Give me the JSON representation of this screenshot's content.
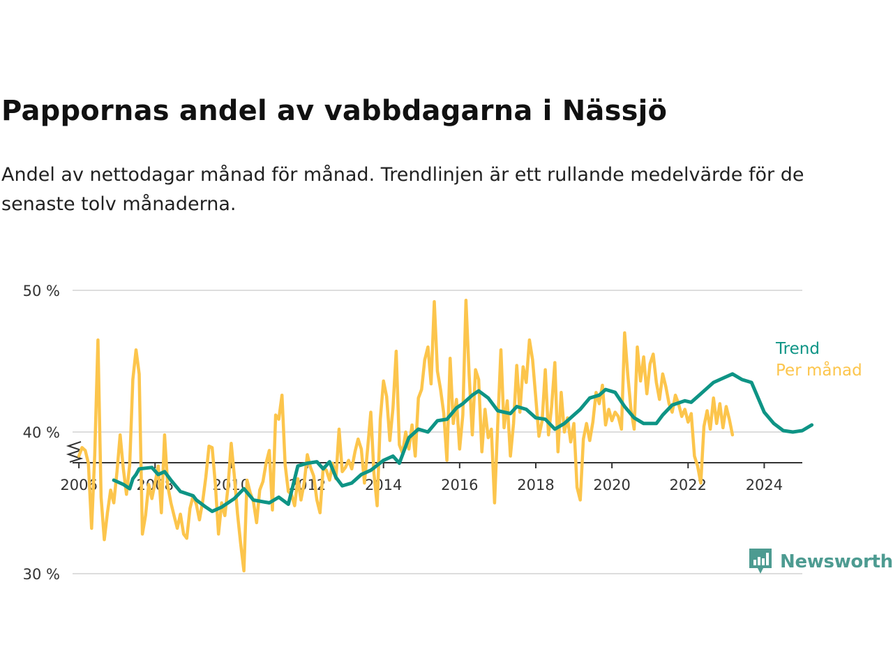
{
  "title": "Pappornas andel av vabbdagarna i Nässjö",
  "subtitle": "Andel av nettodagar månad för månad. Trendlinjen är ett rullande medelvärde för de senaste tolv månaderna.",
  "brand": {
    "name": "Newsworthy",
    "icon": "newsworthy-logo-icon",
    "color": "#4d9b91"
  },
  "colors": {
    "trend": "#0e9485",
    "monthly": "#fcc54c",
    "grid": "#dddddd",
    "axis": "#333333"
  },
  "chart_data": {
    "type": "line",
    "y_ticks": [
      {
        "value": 30,
        "label": "30 %"
      },
      {
        "value": 40,
        "label": "40 %"
      },
      {
        "value": 50,
        "label": "50 %"
      }
    ],
    "x_ticks": [
      "2006",
      "2008",
      "2010",
      "2012",
      "2014",
      "2016",
      "2018",
      "2020",
      "2022",
      "2024"
    ],
    "xlim": [
      "2005-11",
      "2025-01"
    ],
    "ylim": [
      25,
      50
    ],
    "axis_break": true,
    "grid": true,
    "legend": "right-end-labels",
    "series": [
      {
        "name": "Trend",
        "color": "#0e9485",
        "points": [
          [
            "2006-12",
            36.6
          ],
          [
            "2007-03",
            36.3
          ],
          [
            "2007-05",
            36.0
          ],
          [
            "2007-06",
            36.7
          ],
          [
            "2007-07",
            37.0
          ],
          [
            "2007-08",
            37.4
          ],
          [
            "2007-12",
            37.5
          ],
          [
            "2008-02",
            37.0
          ],
          [
            "2008-04",
            37.2
          ],
          [
            "2008-06",
            36.6
          ],
          [
            "2008-09",
            35.8
          ],
          [
            "2009-01",
            35.5
          ],
          [
            "2009-02",
            35.2
          ],
          [
            "2009-05",
            34.7
          ],
          [
            "2009-07",
            34.4
          ],
          [
            "2009-10",
            34.7
          ],
          [
            "2010-02",
            35.3
          ],
          [
            "2010-05",
            36.0
          ],
          [
            "2010-08",
            35.2
          ],
          [
            "2011-01",
            35.0
          ],
          [
            "2011-04",
            35.4
          ],
          [
            "2011-07",
            34.9
          ],
          [
            "2011-10",
            37.6
          ],
          [
            "2012-01",
            37.8
          ],
          [
            "2012-04",
            37.9
          ],
          [
            "2012-06",
            37.4
          ],
          [
            "2012-08",
            37.9
          ],
          [
            "2012-10",
            36.8
          ],
          [
            "2012-12",
            36.2
          ],
          [
            "2013-03",
            36.4
          ],
          [
            "2013-06",
            37.0
          ],
          [
            "2013-09",
            37.3
          ],
          [
            "2014-01",
            38.0
          ],
          [
            "2014-04",
            38.3
          ],
          [
            "2014-06",
            37.8
          ],
          [
            "2014-09",
            39.6
          ],
          [
            "2014-12",
            40.2
          ],
          [
            "2015-03",
            40.0
          ],
          [
            "2015-06",
            40.8
          ],
          [
            "2015-09",
            40.9
          ],
          [
            "2015-12",
            41.7
          ],
          [
            "2016-02",
            42.0
          ],
          [
            "2016-05",
            42.6
          ],
          [
            "2016-07",
            42.9
          ],
          [
            "2016-10",
            42.4
          ],
          [
            "2017-01",
            41.5
          ],
          [
            "2017-05",
            41.3
          ],
          [
            "2017-07",
            41.8
          ],
          [
            "2017-10",
            41.6
          ],
          [
            "2018-01",
            41.0
          ],
          [
            "2018-04",
            40.9
          ],
          [
            "2018-07",
            40.2
          ],
          [
            "2018-10",
            40.6
          ],
          [
            "2019-03",
            41.6
          ],
          [
            "2019-06",
            42.4
          ],
          [
            "2019-09",
            42.6
          ],
          [
            "2019-11",
            43.0
          ],
          [
            "2020-02",
            42.8
          ],
          [
            "2020-05",
            41.8
          ],
          [
            "2020-08",
            41.0
          ],
          [
            "2020-11",
            40.6
          ],
          [
            "2021-03",
            40.6
          ],
          [
            "2021-05",
            41.2
          ],
          [
            "2021-08",
            41.9
          ],
          [
            "2021-12",
            42.2
          ],
          [
            "2022-02",
            42.1
          ],
          [
            "2022-05",
            42.7
          ],
          [
            "2022-09",
            43.5
          ],
          [
            "2022-12",
            43.8
          ],
          [
            "2023-03",
            44.1
          ],
          [
            "2023-06",
            43.7
          ],
          [
            "2023-09",
            43.5
          ],
          [
            "2024-01",
            41.4
          ],
          [
            "2024-04",
            40.6
          ],
          [
            "2024-07",
            40.1
          ],
          [
            "2024-10",
            40.0
          ],
          [
            "2025-01",
            40.1
          ],
          [
            "2025-04",
            40.5
          ]
        ]
      },
      {
        "name": "Per månad",
        "color": "#fcc54c",
        "points": [
          [
            "2006-01",
            38.3
          ],
          [
            "2006-02",
            38.9
          ],
          [
            "2006-03",
            38.7
          ],
          [
            "2006-04",
            37.8
          ],
          [
            "2006-05",
            33.2
          ],
          [
            "2006-06",
            38.4
          ],
          [
            "2006-07",
            46.5
          ],
          [
            "2006-08",
            35.4
          ],
          [
            "2006-09",
            32.4
          ],
          [
            "2006-10",
            34.3
          ],
          [
            "2006-11",
            35.9
          ],
          [
            "2006-12",
            35.0
          ],
          [
            "2007-01",
            37.2
          ],
          [
            "2007-02",
            39.8
          ],
          [
            "2007-03",
            37.4
          ],
          [
            "2007-04",
            35.6
          ],
          [
            "2007-05",
            37.7
          ],
          [
            "2007-06",
            43.7
          ],
          [
            "2007-07",
            45.8
          ],
          [
            "2007-08",
            44.1
          ],
          [
            "2007-09",
            32.8
          ],
          [
            "2007-10",
            34.1
          ],
          [
            "2007-11",
            36.3
          ],
          [
            "2007-12",
            35.3
          ],
          [
            "2008-01",
            36.4
          ],
          [
            "2008-02",
            37.6
          ],
          [
            "2008-03",
            34.3
          ],
          [
            "2008-04",
            39.8
          ],
          [
            "2008-05",
            36.2
          ],
          [
            "2008-06",
            35.0
          ],
          [
            "2008-07",
            34.1
          ],
          [
            "2008-08",
            33.2
          ],
          [
            "2008-09",
            34.2
          ],
          [
            "2008-10",
            32.8
          ],
          [
            "2008-11",
            32.5
          ],
          [
            "2008-12",
            34.6
          ],
          [
            "2009-01",
            35.5
          ],
          [
            "2009-02",
            34.9
          ],
          [
            "2009-03",
            33.8
          ],
          [
            "2009-04",
            35.1
          ],
          [
            "2009-05",
            36.8
          ],
          [
            "2009-06",
            39.0
          ],
          [
            "2009-07",
            38.9
          ],
          [
            "2009-08",
            36.3
          ],
          [
            "2009-09",
            32.8
          ],
          [
            "2009-10",
            35.0
          ],
          [
            "2009-11",
            34.1
          ],
          [
            "2009-12",
            36.1
          ],
          [
            "2010-01",
            39.2
          ],
          [
            "2010-02",
            36.9
          ],
          [
            "2010-03",
            34.2
          ],
          [
            "2010-04",
            32.1
          ],
          [
            "2010-05",
            30.2
          ],
          [
            "2010-06",
            36.6
          ],
          [
            "2010-07",
            35.7
          ],
          [
            "2010-08",
            35.1
          ],
          [
            "2010-09",
            33.6
          ],
          [
            "2010-10",
            35.9
          ],
          [
            "2010-11",
            36.5
          ],
          [
            "2010-12",
            37.8
          ],
          [
            "2011-01",
            38.7
          ],
          [
            "2011-02",
            34.5
          ],
          [
            "2011-03",
            41.2
          ],
          [
            "2011-04",
            40.9
          ],
          [
            "2011-05",
            42.6
          ],
          [
            "2011-06",
            37.7
          ],
          [
            "2011-07",
            35.8
          ],
          [
            "2011-08",
            35.6
          ],
          [
            "2011-09",
            34.8
          ],
          [
            "2011-10",
            36.7
          ],
          [
            "2011-11",
            35.2
          ],
          [
            "2011-12",
            36.4
          ],
          [
            "2012-01",
            38.4
          ],
          [
            "2012-02",
            37.5
          ],
          [
            "2012-03",
            36.9
          ],
          [
            "2012-04",
            35.2
          ],
          [
            "2012-05",
            34.3
          ],
          [
            "2012-06",
            37.5
          ],
          [
            "2012-07",
            37.3
          ],
          [
            "2012-08",
            36.6
          ],
          [
            "2012-09",
            37.8
          ],
          [
            "2012-10",
            36.7
          ],
          [
            "2012-11",
            40.2
          ],
          [
            "2012-12",
            37.2
          ],
          [
            "2013-01",
            37.5
          ],
          [
            "2013-02",
            38.0
          ],
          [
            "2013-03",
            37.4
          ],
          [
            "2013-04",
            38.6
          ],
          [
            "2013-05",
            39.5
          ],
          [
            "2013-06",
            38.8
          ],
          [
            "2013-07",
            36.4
          ],
          [
            "2013-08",
            38.8
          ],
          [
            "2013-09",
            41.4
          ],
          [
            "2013-10",
            37.1
          ],
          [
            "2013-11",
            34.8
          ],
          [
            "2013-12",
            40.9
          ],
          [
            "2014-01",
            43.6
          ],
          [
            "2014-02",
            42.5
          ],
          [
            "2014-03",
            39.4
          ],
          [
            "2014-04",
            41.7
          ],
          [
            "2014-05",
            45.7
          ],
          [
            "2014-06",
            39.1
          ],
          [
            "2014-07",
            38.5
          ],
          [
            "2014-08",
            40.0
          ],
          [
            "2014-09",
            38.8
          ],
          [
            "2014-10",
            40.5
          ],
          [
            "2014-11",
            38.3
          ],
          [
            "2014-12",
            42.4
          ],
          [
            "2015-01",
            43.0
          ],
          [
            "2015-02",
            45.1
          ],
          [
            "2015-03",
            46.0
          ],
          [
            "2015-04",
            43.4
          ],
          [
            "2015-05",
            49.2
          ],
          [
            "2015-06",
            44.3
          ],
          [
            "2015-07",
            43.0
          ],
          [
            "2015-08",
            41.3
          ],
          [
            "2015-09",
            38.0
          ],
          [
            "2015-10",
            45.2
          ],
          [
            "2015-11",
            40.6
          ],
          [
            "2015-12",
            42.3
          ],
          [
            "2016-01",
            38.8
          ],
          [
            "2016-02",
            41.2
          ],
          [
            "2016-03",
            49.3
          ],
          [
            "2016-04",
            44.0
          ],
          [
            "2016-05",
            39.8
          ],
          [
            "2016-06",
            44.4
          ],
          [
            "2016-07",
            43.7
          ],
          [
            "2016-08",
            38.6
          ],
          [
            "2016-09",
            41.6
          ],
          [
            "2016-10",
            39.6
          ],
          [
            "2016-11",
            40.2
          ],
          [
            "2016-12",
            35.0
          ],
          [
            "2017-01",
            40.5
          ],
          [
            "2017-02",
            45.8
          ],
          [
            "2017-03",
            40.3
          ],
          [
            "2017-04",
            42.2
          ],
          [
            "2017-05",
            38.3
          ],
          [
            "2017-06",
            40.6
          ],
          [
            "2017-07",
            44.7
          ],
          [
            "2017-08",
            41.4
          ],
          [
            "2017-09",
            44.6
          ],
          [
            "2017-10",
            43.5
          ],
          [
            "2017-11",
            46.5
          ],
          [
            "2017-12",
            45.1
          ],
          [
            "2018-01",
            42.4
          ],
          [
            "2018-02",
            39.7
          ],
          [
            "2018-03",
            40.8
          ],
          [
            "2018-04",
            44.4
          ],
          [
            "2018-05",
            39.8
          ],
          [
            "2018-06",
            41.8
          ],
          [
            "2018-07",
            44.9
          ],
          [
            "2018-08",
            38.6
          ],
          [
            "2018-09",
            42.8
          ],
          [
            "2018-10",
            40.0
          ],
          [
            "2018-11",
            41.0
          ],
          [
            "2018-12",
            39.3
          ],
          [
            "2019-01",
            40.6
          ],
          [
            "2019-02",
            36.1
          ],
          [
            "2019-03",
            35.2
          ],
          [
            "2019-04",
            39.5
          ],
          [
            "2019-05",
            40.6
          ],
          [
            "2019-06",
            39.4
          ],
          [
            "2019-07",
            40.7
          ],
          [
            "2019-08",
            42.8
          ],
          [
            "2019-09",
            42.0
          ],
          [
            "2019-10",
            43.3
          ],
          [
            "2019-11",
            40.5
          ],
          [
            "2019-12",
            41.6
          ],
          [
            "2020-01",
            40.8
          ],
          [
            "2020-02",
            41.4
          ],
          [
            "2020-03",
            41.1
          ],
          [
            "2020-04",
            40.2
          ],
          [
            "2020-05",
            47.0
          ],
          [
            "2020-06",
            44.0
          ],
          [
            "2020-07",
            41.6
          ],
          [
            "2020-08",
            40.2
          ],
          [
            "2020-09",
            46.0
          ],
          [
            "2020-10",
            43.6
          ],
          [
            "2020-11",
            45.3
          ],
          [
            "2020-12",
            42.7
          ],
          [
            "2021-01",
            44.8
          ],
          [
            "2021-02",
            45.5
          ],
          [
            "2021-03",
            43.5
          ],
          [
            "2021-04",
            42.3
          ],
          [
            "2021-05",
            44.1
          ],
          [
            "2021-06",
            43.2
          ],
          [
            "2021-07",
            42.0
          ],
          [
            "2021-08",
            41.4
          ],
          [
            "2021-09",
            42.6
          ],
          [
            "2021-10",
            42.0
          ],
          [
            "2021-11",
            41.1
          ],
          [
            "2021-12",
            41.6
          ],
          [
            "2022-01",
            40.7
          ],
          [
            "2022-02",
            41.3
          ],
          [
            "2022-03",
            38.3
          ],
          [
            "2022-04",
            37.6
          ],
          [
            "2022-05",
            36.4
          ],
          [
            "2022-06",
            40.4
          ],
          [
            "2022-07",
            41.5
          ],
          [
            "2022-08",
            40.2
          ],
          [
            "2022-09",
            42.4
          ],
          [
            "2022-10",
            40.6
          ],
          [
            "2022-11",
            42.0
          ],
          [
            "2022-12",
            40.3
          ],
          [
            "2023-01",
            41.8
          ],
          [
            "2023-02",
            40.9
          ],
          [
            "2023-03",
            39.8
          ]
        ]
      }
    ]
  }
}
